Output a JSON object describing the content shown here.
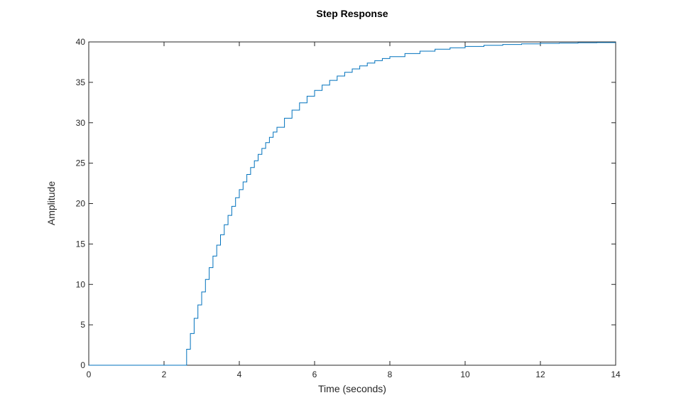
{
  "chart_data": {
    "type": "line",
    "title": "Step Response",
    "xlabel": "Time (seconds)",
    "ylabel": "Amplitude",
    "xlim": [
      0,
      14
    ],
    "ylim": [
      0,
      40
    ],
    "xticks": [
      0,
      2,
      4,
      6,
      8,
      10,
      12,
      14
    ],
    "yticks": [
      0,
      5,
      10,
      15,
      20,
      25,
      30,
      35,
      40
    ],
    "xtick_labels": [
      "0",
      "2",
      "4",
      "6",
      "8",
      "10",
      "12",
      "14"
    ],
    "ytick_labels": [
      "0",
      "5",
      "10",
      "15",
      "20",
      "25",
      "30",
      "35",
      "40"
    ],
    "grid": false,
    "reference_line": {
      "y": 40,
      "style": "dotted"
    },
    "series": [
      {
        "style": "step",
        "color": "#0072BD",
        "x": [
          0,
          2.6,
          2.7,
          2.8,
          2.9,
          3.0,
          3.1,
          3.2,
          3.3,
          3.4,
          3.5,
          3.6,
          3.7,
          3.8,
          3.9,
          4.0,
          4.1,
          4.2,
          4.3,
          4.4,
          4.5,
          4.6,
          4.7,
          4.8,
          4.9,
          5.0,
          5.2,
          5.4,
          5.6,
          5.8,
          6.0,
          6.2,
          6.4,
          6.6,
          6.8,
          7.0,
          7.2,
          7.4,
          7.6,
          7.8,
          8.0,
          8.4,
          8.8,
          9.2,
          9.6,
          10.0,
          10.5,
          11.0,
          11.5,
          12.0,
          12.5,
          13.0,
          13.5,
          14.0
        ],
        "y": [
          0,
          1.98,
          3.92,
          5.8,
          7.46,
          9.06,
          10.62,
          12.08,
          13.5,
          14.86,
          16.14,
          17.38,
          18.54,
          19.66,
          20.72,
          21.72,
          22.68,
          23.6,
          24.46,
          25.3,
          26.08,
          26.82,
          27.54,
          28.2,
          28.84,
          29.44,
          30.56,
          31.56,
          32.46,
          33.28,
          34.0,
          34.66,
          35.24,
          35.78,
          36.24,
          36.66,
          37.04,
          37.38,
          37.68,
          37.94,
          38.18,
          38.56,
          38.86,
          39.1,
          39.28,
          39.44,
          39.58,
          39.68,
          39.76,
          39.82,
          39.86,
          39.9,
          39.92,
          39.94
        ]
      }
    ]
  }
}
